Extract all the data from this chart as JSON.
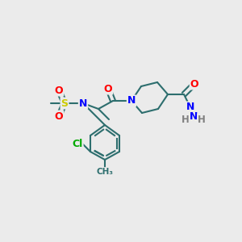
{
  "bg_color": "#ebebeb",
  "atom_colors": {
    "O": "#ff0000",
    "N": "#0000ff",
    "S": "#cccc00",
    "Cl": "#00aa00",
    "C": "#2d6e6e",
    "H": "#808080"
  },
  "bond_color": "#2d6e6e",
  "bond_lw": 1.5,
  "font_size": 9
}
